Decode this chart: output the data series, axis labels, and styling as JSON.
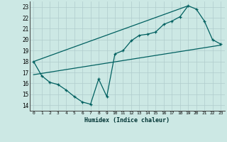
{
  "xlabel": "Humidex (Indice chaleur)",
  "ylabel": "",
  "bg_color": "#cce8e4",
  "grid_color": "#b0cccc",
  "line_color": "#006060",
  "xlim": [
    -0.5,
    23.5
  ],
  "ylim": [
    13.5,
    23.5
  ],
  "xticks": [
    0,
    1,
    2,
    3,
    4,
    5,
    6,
    7,
    8,
    9,
    10,
    11,
    12,
    13,
    14,
    15,
    16,
    17,
    18,
    19,
    20,
    21,
    22,
    23
  ],
  "yticks": [
    14,
    15,
    16,
    17,
    18,
    19,
    20,
    21,
    22,
    23
  ],
  "series1_x": [
    0,
    1,
    2,
    3,
    4,
    5,
    6,
    7,
    8,
    9,
    10,
    11,
    12,
    13,
    14,
    15,
    16,
    17,
    18,
    19,
    20,
    21,
    22,
    23
  ],
  "series1_y": [
    18.0,
    16.7,
    16.1,
    15.9,
    15.4,
    14.8,
    14.3,
    14.1,
    16.4,
    14.8,
    18.7,
    19.0,
    19.9,
    20.4,
    20.5,
    20.7,
    21.4,
    21.7,
    22.1,
    23.1,
    22.8,
    21.7,
    20.0,
    19.6
  ],
  "series2_x": [
    0,
    23
  ],
  "series2_y": [
    16.8,
    19.5
  ],
  "series3_x": [
    0,
    19
  ],
  "series3_y": [
    18.0,
    23.1
  ]
}
